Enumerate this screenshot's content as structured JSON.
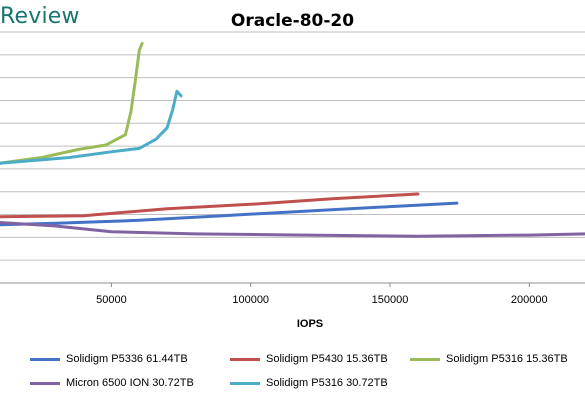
{
  "header": {
    "brand": "Review"
  },
  "chart_data": {
    "type": "line",
    "title": "Oracle-80-20",
    "xlabel": "IOPS",
    "ylabel": "",
    "xlim": [
      10000,
      220000
    ],
    "ylim": [
      0,
      11
    ],
    "x_ticks": [
      50000,
      100000,
      150000,
      200000
    ],
    "x_tick_labels": [
      "50000",
      "100000",
      "150000",
      "200000"
    ],
    "y_gridlines": [
      0,
      1,
      2,
      3,
      4,
      5,
      6,
      7,
      8,
      9,
      10,
      11
    ],
    "grid": "horizontal",
    "legend_position": "bottom",
    "series": [
      {
        "name": "Solidigm P5336 61.44TB",
        "color": "#4472c4",
        "x": [
          10000,
          30000,
          60000,
          90000,
          120000,
          150000,
          174000
        ],
        "y": [
          2.55,
          2.62,
          2.75,
          2.95,
          3.15,
          3.35,
          3.5
        ]
      },
      {
        "name": "Solidigm P5430 15.36TB",
        "color": "#c0504d",
        "x": [
          10000,
          40000,
          70000,
          100000,
          130000,
          160000
        ],
        "y": [
          2.9,
          2.95,
          3.25,
          3.45,
          3.7,
          3.9
        ]
      },
      {
        "name": "Solidigm P5316 15.36TB",
        "color": "#9bbb59",
        "x": [
          10000,
          25000,
          38000,
          48000,
          55000,
          57000,
          58500,
          60000,
          61000
        ],
        "y": [
          5.25,
          5.5,
          5.85,
          6.05,
          6.5,
          7.5,
          8.8,
          10.2,
          10.5
        ]
      },
      {
        "name": "Micron 6500 ION 30.72TB",
        "color": "#8064a2",
        "x": [
          10000,
          30000,
          50000,
          80000,
          120000,
          160000,
          200000,
          220000
        ],
        "y": [
          2.65,
          2.5,
          2.25,
          2.15,
          2.1,
          2.05,
          2.1,
          2.15
        ]
      },
      {
        "name": "Solidigm P5316 30.72TB",
        "color": "#4bacc6",
        "x": [
          10000,
          35000,
          50000,
          60000,
          66000,
          70000,
          72000,
          73500,
          75000
        ],
        "y": [
          5.25,
          5.5,
          5.75,
          5.9,
          6.3,
          6.8,
          7.6,
          8.4,
          8.2
        ]
      }
    ]
  },
  "legend_rows": [
    [
      "Solidigm P5336 61.44TB",
      "Solidigm P5430 15.36TB",
      "Solidigm P5316 15.36TB"
    ],
    [
      "Micron 6500 ION 30.72TB",
      "Solidigm P5316 30.72TB"
    ]
  ]
}
